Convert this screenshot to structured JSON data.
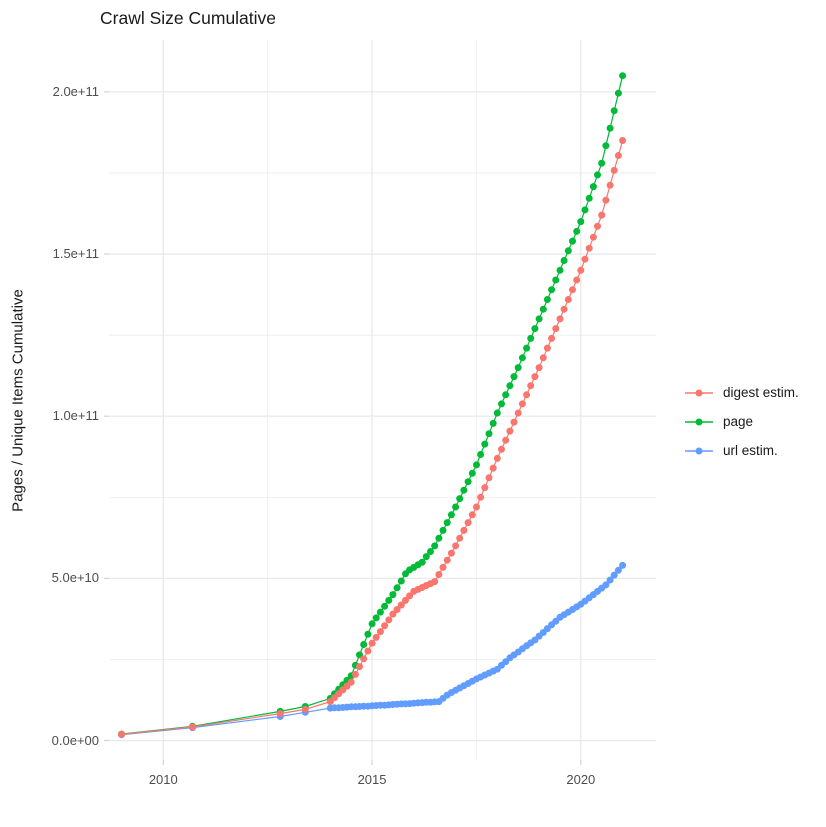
{
  "chart_data": {
    "type": "scatter",
    "connected_lines": true,
    "title": "Crawl Size Cumulative",
    "xlabel": "",
    "ylabel": "Pages / Unique Items Cumulative",
    "legend_position": "right",
    "grid": true,
    "x_unit": "year",
    "value_unit": "billions of items (1e9)",
    "xlim_years": [
      2008.7,
      2021.8
    ],
    "ylim_billions": [
      -6,
      216
    ],
    "x_ticks": [
      {
        "label": "2010",
        "value": 2010
      },
      {
        "label": "2015",
        "value": 2015
      },
      {
        "label": "2020",
        "value": 2020
      }
    ],
    "x_minor_ticks": [
      2012.5,
      2017.5
    ],
    "y_ticks": [
      {
        "label": "0.0e+00",
        "value_billions": 0
      },
      {
        "label": "5.0e+10",
        "value_billions": 50
      },
      {
        "label": "1.0e+11",
        "value_billions": 100
      },
      {
        "label": "1.5e+11",
        "value_billions": 150
      },
      {
        "label": "2.0e+11",
        "value_billions": 200
      }
    ],
    "y_minor_ticks_billions": [
      25,
      75,
      125,
      175
    ],
    "series": [
      {
        "name": "digest estim.",
        "color": "#F8766D",
        "points": [
          [
            2009.0,
            1.9
          ],
          [
            2010.7,
            4.2
          ],
          [
            2012.8,
            8.3
          ],
          [
            2013.4,
            9.6
          ],
          [
            2014.0,
            12.0
          ],
          [
            2014.1,
            13.2
          ],
          [
            2014.2,
            14.4
          ],
          [
            2014.3,
            15.6
          ],
          [
            2014.4,
            16.8
          ],
          [
            2014.5,
            18.0
          ],
          [
            2014.6,
            20.4
          ],
          [
            2014.7,
            22.8
          ],
          [
            2014.8,
            25.2
          ],
          [
            2014.9,
            27.6
          ],
          [
            2015.0,
            30.0
          ],
          [
            2015.1,
            31.8
          ],
          [
            2015.2,
            33.6
          ],
          [
            2015.3,
            35.4
          ],
          [
            2015.4,
            37.2
          ],
          [
            2015.5,
            39.0
          ],
          [
            2015.6,
            40.4
          ],
          [
            2015.7,
            41.8
          ],
          [
            2015.8,
            43.2
          ],
          [
            2015.9,
            44.6
          ],
          [
            2016.0,
            46.0
          ],
          [
            2016.1,
            46.6
          ],
          [
            2016.2,
            47.2
          ],
          [
            2016.3,
            47.8
          ],
          [
            2016.4,
            48.4
          ],
          [
            2016.5,
            49.0
          ],
          [
            2016.6,
            51.2
          ],
          [
            2016.7,
            53.4
          ],
          [
            2016.8,
            55.6
          ],
          [
            2016.9,
            57.8
          ],
          [
            2017.0,
            60.0
          ],
          [
            2017.1,
            62.4
          ],
          [
            2017.2,
            64.8
          ],
          [
            2017.3,
            67.2
          ],
          [
            2017.4,
            69.6
          ],
          [
            2017.5,
            72.0
          ],
          [
            2017.6,
            75.0
          ],
          [
            2017.7,
            78.0
          ],
          [
            2017.8,
            81.0
          ],
          [
            2017.9,
            84.0
          ],
          [
            2018.0,
            87.0
          ],
          [
            2018.1,
            89.8
          ],
          [
            2018.2,
            92.6
          ],
          [
            2018.3,
            95.4
          ],
          [
            2018.4,
            98.2
          ],
          [
            2018.5,
            101.0
          ],
          [
            2018.6,
            103.8
          ],
          [
            2018.7,
            106.6
          ],
          [
            2018.8,
            109.4
          ],
          [
            2018.9,
            112.2
          ],
          [
            2019.0,
            115.0
          ],
          [
            2019.1,
            118.0
          ],
          [
            2019.2,
            121.0
          ],
          [
            2019.3,
            124.0
          ],
          [
            2019.4,
            127.0
          ],
          [
            2019.5,
            130.0
          ],
          [
            2019.6,
            133.0
          ],
          [
            2019.7,
            136.0
          ],
          [
            2019.8,
            139.0
          ],
          [
            2019.9,
            142.0
          ],
          [
            2020.0,
            145.0
          ],
          [
            2020.1,
            148.4
          ],
          [
            2020.2,
            151.8
          ],
          [
            2020.3,
            155.2
          ],
          [
            2020.4,
            158.6
          ],
          [
            2020.5,
            162.0
          ],
          [
            2020.6,
            166.6
          ],
          [
            2020.7,
            171.2
          ],
          [
            2020.8,
            175.8
          ],
          [
            2020.9,
            180.4
          ],
          [
            2021.0,
            185.0
          ]
        ]
      },
      {
        "name": "page",
        "color": "#00BA38",
        "points": [
          [
            2009.0,
            2.0
          ],
          [
            2010.7,
            4.4
          ],
          [
            2012.8,
            9.0
          ],
          [
            2013.4,
            10.5
          ],
          [
            2014.0,
            13.0
          ],
          [
            2014.1,
            14.4
          ],
          [
            2014.2,
            15.8
          ],
          [
            2014.3,
            17.2
          ],
          [
            2014.4,
            18.6
          ],
          [
            2014.5,
            20.0
          ],
          [
            2014.6,
            23.2
          ],
          [
            2014.7,
            26.4
          ],
          [
            2014.8,
            29.6
          ],
          [
            2014.9,
            32.8
          ],
          [
            2015.0,
            36.0
          ],
          [
            2015.1,
            37.8
          ],
          [
            2015.2,
            39.6
          ],
          [
            2015.3,
            41.4
          ],
          [
            2015.4,
            43.2
          ],
          [
            2015.5,
            45.0
          ],
          [
            2015.6,
            47.1
          ],
          [
            2015.7,
            49.2
          ],
          [
            2015.8,
            51.4
          ],
          [
            2015.9,
            52.6
          ],
          [
            2016.0,
            53.4
          ],
          [
            2016.1,
            54.2
          ],
          [
            2016.2,
            55.0
          ],
          [
            2016.3,
            56.7
          ],
          [
            2016.4,
            58.3
          ],
          [
            2016.5,
            60.0
          ],
          [
            2016.6,
            62.4
          ],
          [
            2016.7,
            64.8
          ],
          [
            2016.8,
            67.2
          ],
          [
            2016.9,
            69.6
          ],
          [
            2017.0,
            72.0
          ],
          [
            2017.1,
            74.6
          ],
          [
            2017.2,
            77.2
          ],
          [
            2017.3,
            79.8
          ],
          [
            2017.4,
            82.4
          ],
          [
            2017.5,
            85.0
          ],
          [
            2017.6,
            88.2
          ],
          [
            2017.7,
            91.4
          ],
          [
            2017.8,
            94.6
          ],
          [
            2017.9,
            97.8
          ],
          [
            2018.0,
            101.0
          ],
          [
            2018.1,
            103.8
          ],
          [
            2018.2,
            106.6
          ],
          [
            2018.3,
            109.4
          ],
          [
            2018.4,
            112.2
          ],
          [
            2018.5,
            115.0
          ],
          [
            2018.6,
            118.0
          ],
          [
            2018.7,
            121.0
          ],
          [
            2018.8,
            124.0
          ],
          [
            2018.9,
            127.0
          ],
          [
            2019.0,
            130.0
          ],
          [
            2019.1,
            133.0
          ],
          [
            2019.2,
            136.0
          ],
          [
            2019.3,
            139.0
          ],
          [
            2019.4,
            142.0
          ],
          [
            2019.5,
            145.0
          ],
          [
            2019.6,
            148.0
          ],
          [
            2019.7,
            151.0
          ],
          [
            2019.8,
            154.0
          ],
          [
            2019.9,
            157.0
          ],
          [
            2020.0,
            160.0
          ],
          [
            2020.1,
            163.6
          ],
          [
            2020.2,
            167.2
          ],
          [
            2020.3,
            170.8
          ],
          [
            2020.4,
            174.4
          ],
          [
            2020.5,
            178.0
          ],
          [
            2020.6,
            183.4
          ],
          [
            2020.7,
            188.8
          ],
          [
            2020.8,
            194.2
          ],
          [
            2020.9,
            199.6
          ],
          [
            2021.0,
            205.0
          ]
        ]
      },
      {
        "name": "url estim.",
        "color": "#619CFF",
        "points": [
          [
            2009.0,
            1.8
          ],
          [
            2010.7,
            4.0
          ],
          [
            2012.8,
            7.4
          ],
          [
            2013.4,
            8.7
          ],
          [
            2014.0,
            10.0
          ],
          [
            2014.1,
            10.1
          ],
          [
            2014.2,
            10.1
          ],
          [
            2014.3,
            10.2
          ],
          [
            2014.4,
            10.3
          ],
          [
            2014.5,
            10.4
          ],
          [
            2014.6,
            10.4
          ],
          [
            2014.7,
            10.5
          ],
          [
            2014.8,
            10.6
          ],
          [
            2014.9,
            10.6
          ],
          [
            2015.0,
            10.7
          ],
          [
            2015.1,
            10.8
          ],
          [
            2015.2,
            10.9
          ],
          [
            2015.3,
            10.9
          ],
          [
            2015.4,
            11.0
          ],
          [
            2015.5,
            11.1
          ],
          [
            2015.6,
            11.2
          ],
          [
            2015.7,
            11.3
          ],
          [
            2015.8,
            11.3
          ],
          [
            2015.9,
            11.4
          ],
          [
            2016.0,
            11.5
          ],
          [
            2016.1,
            11.6
          ],
          [
            2016.2,
            11.7
          ],
          [
            2016.3,
            11.8
          ],
          [
            2016.4,
            11.8
          ],
          [
            2016.5,
            11.9
          ],
          [
            2016.6,
            12.0
          ],
          [
            2016.7,
            13.0
          ],
          [
            2016.8,
            14.0
          ],
          [
            2016.9,
            14.8
          ],
          [
            2017.0,
            15.5
          ],
          [
            2017.1,
            16.2
          ],
          [
            2017.2,
            16.9
          ],
          [
            2017.3,
            17.6
          ],
          [
            2017.4,
            18.3
          ],
          [
            2017.5,
            19.0
          ],
          [
            2017.6,
            19.6
          ],
          [
            2017.7,
            20.2
          ],
          [
            2017.8,
            20.8
          ],
          [
            2017.9,
            21.4
          ],
          [
            2018.0,
            22.0
          ],
          [
            2018.1,
            23.2
          ],
          [
            2018.2,
            24.3
          ],
          [
            2018.3,
            25.5
          ],
          [
            2018.4,
            26.4
          ],
          [
            2018.5,
            27.3
          ],
          [
            2018.6,
            28.3
          ],
          [
            2018.7,
            29.2
          ],
          [
            2018.8,
            30.1
          ],
          [
            2018.9,
            31.0
          ],
          [
            2019.0,
            32.2
          ],
          [
            2019.1,
            33.3
          ],
          [
            2019.2,
            34.5
          ],
          [
            2019.3,
            35.7
          ],
          [
            2019.4,
            36.8
          ],
          [
            2019.5,
            38.0
          ],
          [
            2019.6,
            38.8
          ],
          [
            2019.7,
            39.6
          ],
          [
            2019.8,
            40.4
          ],
          [
            2019.9,
            41.2
          ],
          [
            2020.0,
            42.0
          ],
          [
            2020.1,
            43.0
          ],
          [
            2020.2,
            44.0
          ],
          [
            2020.3,
            45.0
          ],
          [
            2020.4,
            46.0
          ],
          [
            2020.5,
            47.0
          ],
          [
            2020.6,
            48.0
          ],
          [
            2020.7,
            49.5
          ],
          [
            2020.8,
            51.0
          ],
          [
            2020.9,
            52.5
          ],
          [
            2021.0,
            54.0
          ]
        ]
      }
    ]
  },
  "style": {
    "background": "#ffffff",
    "grid_color": "#e9e9e9",
    "tick_color": "#d4d4d4",
    "axis_text_color": "#4d4d4d",
    "text_color": "#1a1a1a",
    "point_radius": 3.5
  }
}
